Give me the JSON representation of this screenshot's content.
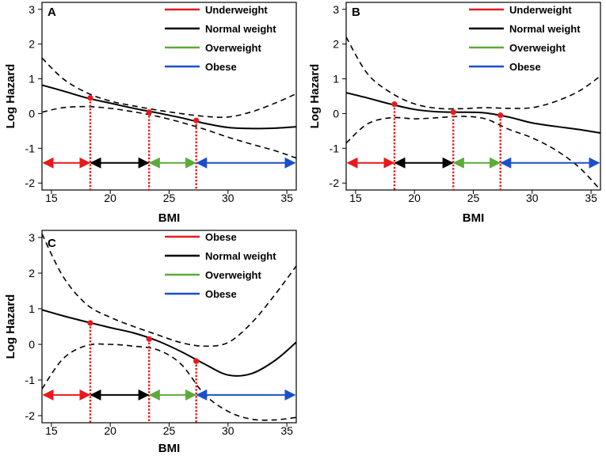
{
  "chart_data": [
    {
      "type": "line",
      "panel_label": "A",
      "xlabel": "BMI",
      "ylabel": "Log Hazard",
      "xlim": [
        14.2,
        35.8
      ],
      "ylim": [
        -2.2,
        3.2
      ],
      "xticks": [
        "15",
        "20",
        "25",
        "30",
        "35"
      ],
      "yticks": [
        "3",
        "2",
        "1",
        "0",
        "-1",
        "-2"
      ],
      "x": [
        14.2,
        16,
        18,
        20,
        22,
        24,
        26,
        28,
        30,
        32,
        34,
        35.8
      ],
      "series": [
        {
          "name": "estimate",
          "style": "solid",
          "values": [
            0.82,
            0.65,
            0.45,
            0.3,
            0.15,
            0.02,
            -0.12,
            -0.28,
            -0.4,
            -0.43,
            -0.42,
            -0.38
          ]
        },
        {
          "name": "upper",
          "style": "dashed",
          "values": [
            1.6,
            1.0,
            0.6,
            0.36,
            0.22,
            0.1,
            0.0,
            -0.08,
            -0.1,
            0.05,
            0.3,
            0.57
          ]
        },
        {
          "name": "lower",
          "style": "dashed",
          "values": [
            0.04,
            0.17,
            0.2,
            0.15,
            0.05,
            -0.08,
            -0.25,
            -0.45,
            -0.68,
            -0.88,
            -1.07,
            -1.28
          ]
        }
      ],
      "points": {
        "x": [
          18.3,
          23.3,
          27.3
        ],
        "y": [
          0.45,
          0.04,
          -0.2
        ]
      },
      "cutoffs": [
        18.3,
        23.3,
        27.3
      ],
      "arrows_y": -1.42,
      "legend": [
        {
          "label": "Underweight",
          "color": "#e8191b"
        },
        {
          "label": "Normal weight",
          "color": "#000000"
        },
        {
          "label": "Overweight",
          "color": "#5bab3a"
        },
        {
          "label": "Obese",
          "color": "#1a4fc9"
        }
      ]
    },
    {
      "type": "line",
      "panel_label": "B",
      "xlabel": "BMI",
      "ylabel": "Log Hazard",
      "xlim": [
        14.2,
        35.8
      ],
      "ylim": [
        -2.2,
        3.2
      ],
      "xticks": [
        "15",
        "20",
        "25",
        "30",
        "35"
      ],
      "yticks": [
        "3",
        "2",
        "1",
        "0",
        "-1",
        "-2"
      ],
      "x": [
        14.2,
        16,
        18,
        20,
        22,
        24,
        26,
        28,
        30,
        32,
        34,
        35.8
      ],
      "series": [
        {
          "name": "estimate",
          "style": "solid",
          "values": [
            0.6,
            0.45,
            0.27,
            0.12,
            0.05,
            0.04,
            0.02,
            -0.1,
            -0.27,
            -0.37,
            -0.46,
            -0.56
          ]
        },
        {
          "name": "upper",
          "style": "dashed",
          "values": [
            2.2,
            1.15,
            0.6,
            0.28,
            0.15,
            0.14,
            0.17,
            0.15,
            0.17,
            0.35,
            0.65,
            1.08
          ]
        },
        {
          "name": "lower",
          "style": "dashed",
          "values": [
            -0.85,
            -0.3,
            -0.12,
            -0.15,
            -0.12,
            -0.08,
            -0.15,
            -0.45,
            -0.7,
            -1.05,
            -1.55,
            -2.2
          ]
        }
      ],
      "points": {
        "x": [
          18.3,
          23.3,
          27.3
        ],
        "y": [
          0.27,
          0.04,
          -0.05
        ]
      },
      "cutoffs": [
        18.3,
        23.3,
        27.3
      ],
      "arrows_y": -1.42,
      "legend": [
        {
          "label": "Underweight",
          "color": "#e8191b"
        },
        {
          "label": "Normal weight",
          "color": "#000000"
        },
        {
          "label": "Overweight",
          "color": "#5bab3a"
        },
        {
          "label": "Obese",
          "color": "#1a4fc9"
        }
      ]
    },
    {
      "type": "line",
      "panel_label": "C",
      "xlabel": "BMI",
      "ylabel": "Log Hazard",
      "xlim": [
        14.2,
        35.8
      ],
      "ylim": [
        -2.2,
        3.2
      ],
      "xticks": [
        "15",
        "20",
        "25",
        "30",
        "35"
      ],
      "yticks": [
        "3",
        "2",
        "1",
        "0",
        "-1",
        "-2"
      ],
      "x": [
        14.2,
        16,
        18,
        20,
        22,
        24,
        26,
        28,
        30,
        32,
        34,
        35.8
      ],
      "series": [
        {
          "name": "estimate",
          "style": "solid",
          "values": [
            0.97,
            0.8,
            0.63,
            0.47,
            0.32,
            0.1,
            -0.2,
            -0.55,
            -0.86,
            -0.82,
            -0.45,
            0.06
          ]
        },
        {
          "name": "upper",
          "style": "dashed",
          "values": [
            3.1,
            1.9,
            1.12,
            0.76,
            0.5,
            0.27,
            0.05,
            -0.05,
            0.05,
            0.6,
            1.4,
            2.2
          ]
        },
        {
          "name": "lower",
          "style": "dashed",
          "values": [
            -1.25,
            -0.4,
            -0.03,
            0.0,
            -0.05,
            -0.15,
            -0.55,
            -1.4,
            -1.88,
            -2.1,
            -2.12,
            -2.05
          ]
        }
      ],
      "points": {
        "x": [
          18.3,
          23.3,
          27.3
        ],
        "y": [
          0.6,
          0.15,
          -0.47
        ]
      },
      "cutoffs": [
        18.3,
        23.3,
        27.3
      ],
      "arrows_y": -1.42,
      "legend": [
        {
          "label": "Obese",
          "color": "#e8191b"
        },
        {
          "label": "Normal weight",
          "color": "#000000"
        },
        {
          "label": "Overweight",
          "color": "#5bab3a"
        },
        {
          "label": "Obese",
          "color": "#1a4fc9"
        }
      ]
    }
  ],
  "colors": {
    "red": "#e8191b",
    "black": "#000000",
    "green": "#5bab3a",
    "blue": "#1a4fc9",
    "marker": "#e8191b"
  }
}
